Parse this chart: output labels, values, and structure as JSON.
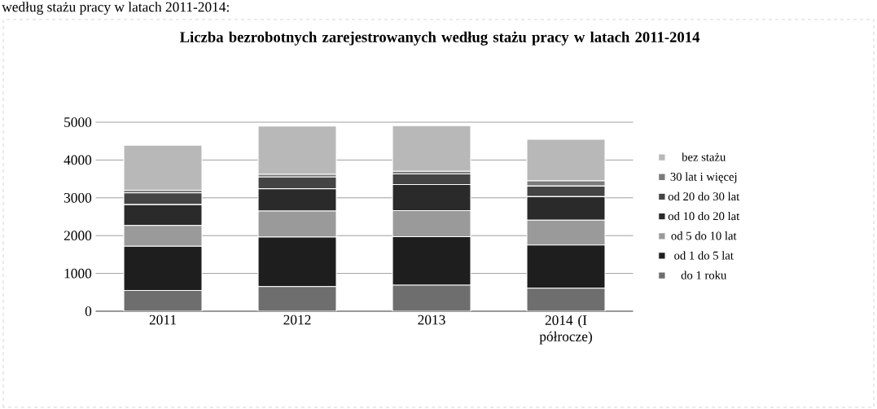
{
  "chart_data": {
    "type": "bar",
    "stacked": true,
    "title": "Liczba bezrobotnych zarejestrowanych według stażu pracy w latach 2011-2014",
    "annotations": [
      "według stażu pracy w latach 2011-2014:"
    ],
    "categories": [
      "2011",
      "2012",
      "2013",
      "2014 (I półrocze)"
    ],
    "series": [
      {
        "name": "do 1 roku",
        "color": "#6e6e6e",
        "values": [
          550,
          650,
          690,
          610
        ]
      },
      {
        "name": "od 1 do 5 lat",
        "color": "#1e1e1e",
        "values": [
          1170,
          1310,
          1280,
          1140
        ]
      },
      {
        "name": "od 5 do 10 lat",
        "color": "#9a9a9a",
        "values": [
          550,
          690,
          690,
          660
        ]
      },
      {
        "name": "od 10 do 20 lat",
        "color": "#2a2a2a",
        "values": [
          550,
          590,
          690,
          620
        ]
      },
      {
        "name": "od 20 do 30 lat",
        "color": "#444444",
        "values": [
          310,
          310,
          280,
          280
        ]
      },
      {
        "name": "30 lat i więcej",
        "color": "#7a7a7a",
        "values": [
          70,
          70,
          70,
          140
        ]
      },
      {
        "name": "bez stażu",
        "color": "#b8b8b8",
        "values": [
          1190,
          1280,
          1210,
          1100
        ]
      }
    ],
    "ylim": [
      0,
      5000
    ],
    "yticks": [
      0,
      1000,
      2000,
      3000,
      4000,
      5000
    ],
    "grid": "y",
    "legend": "right"
  }
}
